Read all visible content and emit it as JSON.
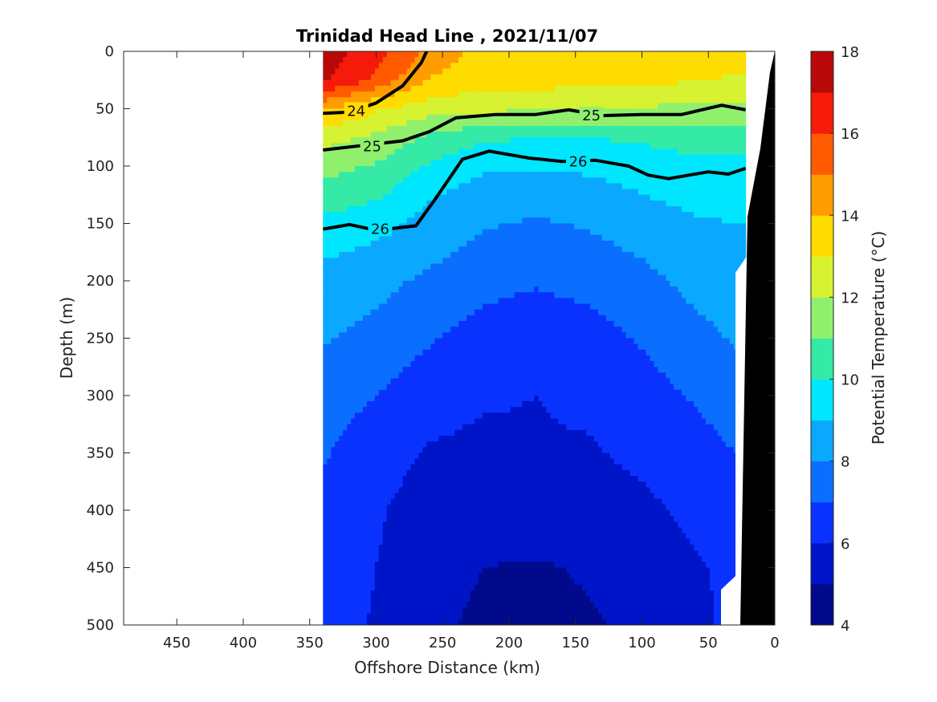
{
  "chart_data": {
    "type": "heatmap",
    "title": "Trinidad Head Line , 2021/11/07",
    "xlabel": "Offshore Distance (km)",
    "ylabel": "Depth (m)",
    "colorbar_label": "Potential Temperature (°C)",
    "x_axis": {
      "range": [
        490,
        0
      ],
      "reversed": true,
      "ticks": [
        450,
        400,
        350,
        300,
        250,
        200,
        150,
        100,
        50,
        0
      ]
    },
    "y_axis": {
      "range": [
        0,
        500
      ],
      "reversed": true,
      "ticks": [
        0,
        50,
        100,
        150,
        200,
        250,
        300,
        350,
        400,
        450,
        500
      ]
    },
    "colorbar": {
      "range": [
        4,
        18
      ],
      "ticks": [
        4,
        6,
        8,
        10,
        12,
        14,
        16,
        18
      ],
      "levels": [
        {
          "min": 4,
          "max": 5,
          "color": "#000a8a"
        },
        {
          "min": 5,
          "max": 6,
          "color": "#0014c8"
        },
        {
          "min": 6,
          "max": 7,
          "color": "#0a32ff"
        },
        {
          "min": 7,
          "max": 8,
          "color": "#0a6eff"
        },
        {
          "min": 8,
          "max": 9,
          "color": "#0aa8ff"
        },
        {
          "min": 9,
          "max": 10,
          "color": "#00e6ff"
        },
        {
          "min": 10,
          "max": 11,
          "color": "#34eaa6"
        },
        {
          "min": 11,
          "max": 12,
          "color": "#90f06e"
        },
        {
          "min": 12,
          "max": 13,
          "color": "#d6f230"
        },
        {
          "min": 13,
          "max": 14,
          "color": "#ffdc00"
        },
        {
          "min": 14,
          "max": 15,
          "color": "#ff9c00"
        },
        {
          "min": 15,
          "max": 16,
          "color": "#ff5a00"
        },
        {
          "min": 16,
          "max": 17,
          "color": "#f51a0a"
        },
        {
          "min": 17,
          "max": 18,
          "color": "#b80808"
        }
      ]
    },
    "data_extent_km": [
      340,
      22
    ],
    "bathymetry_color": "#000000",
    "temperature_field": {
      "x_km": [
        340,
        300,
        260,
        220,
        180,
        140,
        100,
        60,
        30
      ],
      "depth_m": [
        0,
        25,
        50,
        75,
        100,
        125,
        150,
        200,
        250,
        300,
        350,
        400,
        450,
        500
      ],
      "temp_c": [
        [
          17.6,
          16.4,
          14.8,
          13.6,
          13.5,
          13.5,
          13.6,
          13.5,
          13.3
        ],
        [
          17.2,
          15.8,
          13.9,
          13.4,
          13.4,
          13.4,
          13.2,
          13.1,
          12.9
        ],
        [
          14.2,
          13.1,
          12.5,
          12.3,
          12.1,
          12.0,
          11.9,
          11.8,
          11.8
        ],
        [
          12.4,
          11.8,
          10.8,
          10.2,
          10.0,
          10.0,
          10.2,
          10.6,
          10.4
        ],
        [
          11.3,
          10.9,
          9.9,
          9.2,
          9.1,
          9.2,
          9.4,
          9.6,
          9.6
        ],
        [
          10.7,
          10.2,
          9.1,
          8.5,
          8.4,
          8.6,
          9.0,
          9.3,
          9.3
        ],
        [
          9.7,
          9.3,
          8.7,
          8.1,
          7.9,
          8.1,
          8.5,
          8.9,
          9.0
        ],
        [
          8.6,
          8.3,
          7.8,
          7.3,
          7.1,
          7.3,
          7.7,
          8.3,
          8.5
        ],
        [
          8.1,
          7.7,
          7.1,
          6.6,
          6.4,
          6.6,
          7.1,
          7.7,
          8.1
        ],
        [
          7.5,
          7.0,
          6.4,
          6.1,
          6.0,
          6.2,
          6.6,
          7.1,
          7.5
        ],
        [
          7.1,
          6.4,
          5.9,
          5.8,
          5.9,
          5.9,
          6.2,
          6.6,
          7.0
        ],
        [
          6.8,
          6.1,
          5.6,
          5.5,
          5.6,
          5.6,
          5.8,
          6.2,
          6.5
        ],
        [
          6.6,
          6.0,
          5.5,
          5.0,
          4.9,
          5.1,
          5.4,
          5.9,
          6.2
        ],
        [
          6.5,
          5.9,
          5.2,
          4.8,
          4.7,
          4.9,
          5.2,
          5.8,
          6.2
        ]
      ]
    },
    "density_contours": [
      {
        "label": "24",
        "bold": true,
        "points": [
          [
            340,
            54
          ],
          [
            320,
            53
          ],
          [
            300,
            45
          ],
          [
            280,
            30
          ],
          [
            266,
            10
          ],
          [
            262,
            0
          ]
        ]
      },
      {
        "label": "25",
        "bold": true,
        "points": [
          [
            340,
            86
          ],
          [
            310,
            82
          ],
          [
            280,
            78
          ],
          [
            260,
            70
          ],
          [
            240,
            58
          ],
          [
            210,
            55
          ],
          [
            180,
            55
          ],
          [
            155,
            51
          ],
          [
            130,
            56
          ],
          [
            100,
            55
          ],
          [
            70,
            55
          ],
          [
            40,
            47
          ],
          [
            22,
            51
          ]
        ]
      },
      {
        "label": "26",
        "bold": true,
        "points": [
          [
            340,
            155
          ],
          [
            320,
            151
          ],
          [
            300,
            156
          ],
          [
            270,
            152
          ],
          [
            255,
            128
          ],
          [
            235,
            94
          ],
          [
            215,
            87
          ],
          [
            185,
            93
          ],
          [
            160,
            96
          ],
          [
            135,
            95
          ],
          [
            110,
            100
          ],
          [
            95,
            108
          ],
          [
            80,
            111
          ],
          [
            50,
            105
          ],
          [
            35,
            107
          ],
          [
            22,
            102
          ]
        ]
      }
    ],
    "contour_labels": [
      {
        "text": "24",
        "x": 315,
        "y": 52
      },
      {
        "text": "25",
        "x": 138,
        "y": 56
      },
      {
        "text": "25",
        "x": 303,
        "y": 83
      },
      {
        "text": "26",
        "x": 148,
        "y": 96
      },
      {
        "text": "26",
        "x": 297,
        "y": 155
      }
    ]
  }
}
